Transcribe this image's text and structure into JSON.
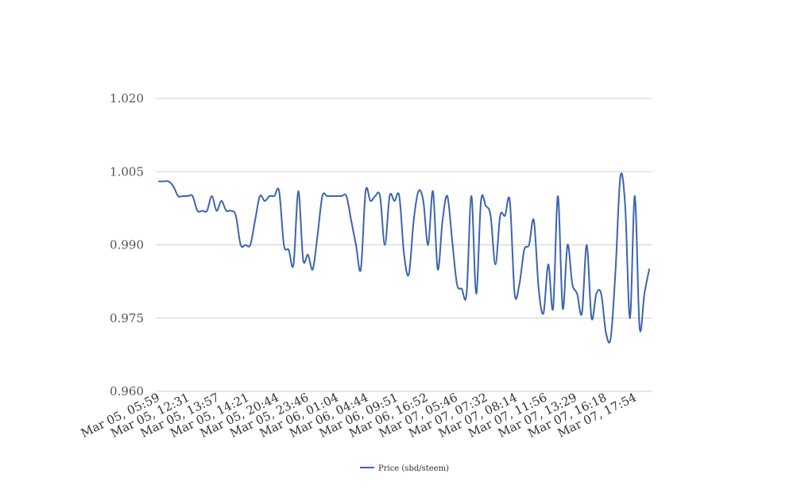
{
  "chart_data": {
    "type": "line",
    "title": "",
    "xlabel": "",
    "ylabel": "",
    "ylim": [
      0.96,
      1.02
    ],
    "y_ticks": [
      "1.020",
      "1.005",
      "0.990",
      "0.975",
      "0.960"
    ],
    "y_tick_values": [
      1.02,
      1.005,
      0.99,
      0.975,
      0.96
    ],
    "x_ticks": [
      "Mar 05, 05:59",
      "Mar 05, 12:31",
      "Mar 05, 13:57",
      "Mar 05, 14:21",
      "Mar 05, 20:44",
      "Mar 05, 23:46",
      "Mar 06, 01:04",
      "Mar 06, 04:44",
      "Mar 06, 09:51",
      "Mar 06, 16:52",
      "Mar 07, 05:46",
      "Mar 07, 07:32",
      "Mar 07, 08:14",
      "Mar 07, 11:56",
      "Mar 07, 13:29",
      "Mar 07, 16:18",
      "Mar 07, 17:54"
    ],
    "grid": true,
    "legend_position": "bottom",
    "series": [
      {
        "name": "Price (sbd/steem)",
        "color": "#3c64b1",
        "values": [
          1.003,
          1.003,
          1.003,
          1.002,
          1.0,
          1.0,
          1.0,
          1.0,
          0.997,
          0.997,
          0.997,
          1.0,
          0.997,
          0.999,
          0.997,
          0.997,
          0.996,
          0.99,
          0.99,
          0.99,
          0.995,
          1.0,
          0.999,
          1.0,
          1.0,
          1.001,
          0.99,
          0.989,
          0.986,
          1.001,
          0.987,
          0.988,
          0.985,
          0.992,
          1.0,
          1.0,
          1.0,
          1.0,
          1.0,
          1.0,
          0.995,
          0.99,
          0.985,
          1.001,
          0.999,
          1.0,
          1.0,
          0.99,
          1.0,
          0.999,
          1.0,
          0.988,
          0.984,
          0.995,
          1.001,
          0.999,
          0.99,
          1.001,
          0.985,
          0.995,
          1.0,
          0.991,
          0.982,
          0.981,
          0.98,
          1.0,
          0.98,
          0.999,
          0.998,
          0.996,
          0.986,
          0.996,
          0.996,
          0.999,
          0.98,
          0.982,
          0.989,
          0.99,
          0.995,
          0.981,
          0.976,
          0.986,
          0.977,
          1.0,
          0.977,
          0.99,
          0.982,
          0.98,
          0.976,
          0.99,
          0.975,
          0.98,
          0.98,
          0.972,
          0.971,
          0.985,
          1.004,
          0.998,
          0.975,
          1.0,
          0.973,
          0.98,
          0.985
        ]
      }
    ]
  }
}
